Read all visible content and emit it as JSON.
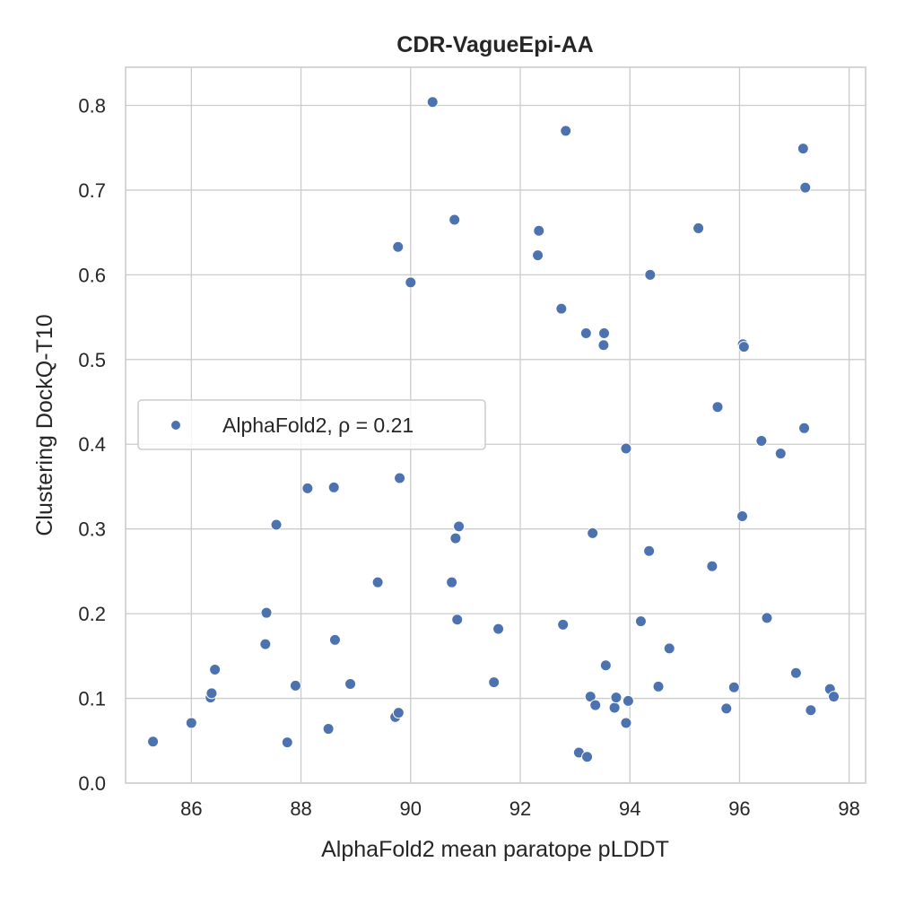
{
  "chart_data": {
    "type": "scatter",
    "title": "CDR-VagueEpi-AA",
    "xlabel": "AlphaFold2 mean paratope pLDDT",
    "ylabel": "Clustering DockQ-T10",
    "xlim": [
      84.8,
      98.3
    ],
    "ylim": [
      0.0,
      0.845
    ],
    "xticks": [
      86,
      88,
      90,
      92,
      94,
      96,
      98
    ],
    "yticks": [
      0.0,
      0.1,
      0.2,
      0.3,
      0.4,
      0.5,
      0.6,
      0.7,
      0.8
    ],
    "xtick_labels": [
      "86",
      "88",
      "90",
      "92",
      "94",
      "96",
      "98"
    ],
    "ytick_labels": [
      "0.0",
      "0.1",
      "0.2",
      "0.3",
      "0.4",
      "0.5",
      "0.6",
      "0.7",
      "0.8"
    ],
    "grid": true,
    "legend_position": "center-left",
    "series": [
      {
        "name": "AlphaFold2, ρ = 0.21",
        "color": "#4c72b0",
        "points": [
          [
            85.3,
            0.049
          ],
          [
            86.0,
            0.071
          ],
          [
            86.35,
            0.101
          ],
          [
            86.37,
            0.106
          ],
          [
            86.43,
            0.134
          ],
          [
            87.35,
            0.164
          ],
          [
            87.37,
            0.201
          ],
          [
            87.55,
            0.305
          ],
          [
            87.75,
            0.048
          ],
          [
            87.9,
            0.115
          ],
          [
            88.12,
            0.348
          ],
          [
            88.5,
            0.064
          ],
          [
            88.6,
            0.349
          ],
          [
            88.62,
            0.169
          ],
          [
            88.9,
            0.117
          ],
          [
            89.4,
            0.237
          ],
          [
            89.72,
            0.078
          ],
          [
            89.77,
            0.633
          ],
          [
            89.78,
            0.083
          ],
          [
            89.8,
            0.36
          ],
          [
            90.0,
            0.591
          ],
          [
            90.4,
            0.804
          ],
          [
            90.75,
            0.237
          ],
          [
            90.8,
            0.665
          ],
          [
            90.82,
            0.289
          ],
          [
            90.85,
            0.193
          ],
          [
            90.88,
            0.303
          ],
          [
            91.52,
            0.119
          ],
          [
            91.6,
            0.182
          ],
          [
            92.32,
            0.623
          ],
          [
            92.34,
            0.652
          ],
          [
            92.75,
            0.56
          ],
          [
            92.78,
            0.187
          ],
          [
            92.83,
            0.77
          ],
          [
            93.07,
            0.036
          ],
          [
            93.2,
            0.531
          ],
          [
            93.22,
            0.031
          ],
          [
            93.28,
            0.102
          ],
          [
            93.32,
            0.295
          ],
          [
            93.37,
            0.092
          ],
          [
            93.52,
            0.517
          ],
          [
            93.53,
            0.531
          ],
          [
            93.56,
            0.139
          ],
          [
            93.72,
            0.089
          ],
          [
            93.75,
            0.101
          ],
          [
            93.93,
            0.395
          ],
          [
            93.93,
            0.071
          ],
          [
            93.97,
            0.097
          ],
          [
            94.2,
            0.191
          ],
          [
            94.35,
            0.274
          ],
          [
            94.37,
            0.6
          ],
          [
            94.52,
            0.114
          ],
          [
            94.72,
            0.159
          ],
          [
            95.25,
            0.655
          ],
          [
            95.5,
            0.256
          ],
          [
            95.6,
            0.444
          ],
          [
            95.76,
            0.088
          ],
          [
            95.9,
            0.113
          ],
          [
            96.05,
            0.315
          ],
          [
            96.06,
            0.518
          ],
          [
            96.08,
            0.515
          ],
          [
            96.4,
            0.404
          ],
          [
            96.5,
            0.195
          ],
          [
            96.75,
            0.389
          ],
          [
            97.03,
            0.13
          ],
          [
            97.16,
            0.749
          ],
          [
            97.18,
            0.419
          ],
          [
            97.2,
            0.703
          ],
          [
            97.3,
            0.086
          ],
          [
            97.65,
            0.111
          ],
          [
            97.72,
            0.102
          ]
        ]
      }
    ]
  }
}
